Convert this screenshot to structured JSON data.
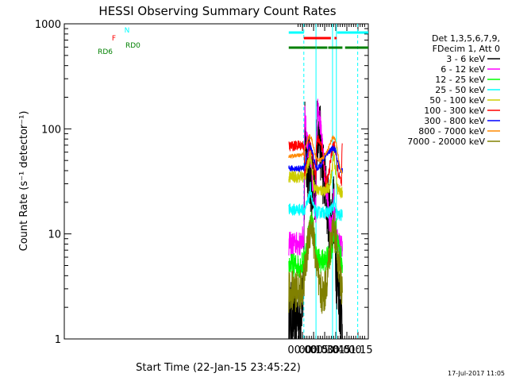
{
  "chart_data": {
    "type": "line",
    "title": "HESSI Observing Summary Count Rates",
    "xlabel": "Start Time (22-Jan-15 23:45:22)",
    "ylabel": "Count Rate (s⁻¹ detector⁻¹)",
    "y_scale": "log",
    "ylim": [
      1,
      1000
    ],
    "xlim": [
      -5.37,
      1.4833
    ],
    "x_unit": "hours from 00:00 (23-Jan-15)",
    "x_ticks": [
      {
        "value": 0.0,
        "label": "00:00"
      },
      {
        "value": 0.25,
        "label": "00:15"
      },
      {
        "value": 0.5,
        "label": "00:30"
      },
      {
        "value": 0.75,
        "label": "00:45"
      },
      {
        "value": 1.0,
        "label": "01:00"
      },
      {
        "value": 1.25,
        "label": "01:15"
      }
    ],
    "y_ticks": [
      {
        "value": 1,
        "label": "1"
      },
      {
        "value": 10,
        "label": "10"
      },
      {
        "value": 100,
        "label": "100"
      },
      {
        "value": 1000,
        "label": "1000"
      }
    ],
    "legend": {
      "header": [
        "Det 1,3,5,6,7,9,",
        "FDecim 1, Att 0"
      ],
      "placement": "right"
    },
    "series": [
      {
        "name": "3 - 6 keV",
        "color": "#000000",
        "points": [
          [
            -0.31,
            1.6
          ],
          [
            -0.04,
            1.6
          ],
          [
            -0.02,
            2.6
          ],
          [
            0.03,
            2.8
          ],
          [
            0.05,
            120
          ],
          [
            0.08,
            70
          ],
          [
            0.12,
            45
          ],
          [
            0.18,
            35
          ],
          [
            0.22,
            28
          ],
          [
            0.26,
            22
          ],
          [
            0.3,
            20
          ],
          [
            0.31,
            75
          ],
          [
            0.34,
            100
          ],
          [
            0.36,
            110
          ],
          [
            0.4,
            75
          ],
          [
            0.45,
            45
          ],
          [
            0.52,
            25
          ],
          [
            0.58,
            17
          ],
          [
            0.62,
            15
          ],
          [
            0.66,
            14
          ],
          [
            0.68,
            13
          ],
          [
            0.7,
            22
          ],
          [
            0.72,
            10
          ],
          [
            0.76,
            5
          ],
          [
            0.8,
            3
          ],
          [
            0.86,
            2
          ],
          [
            0.9,
            1.5
          ]
        ]
      },
      {
        "name": "6 - 12 keV",
        "color": "#ff00ff",
        "points": [
          [
            -0.31,
            8
          ],
          [
            -0.04,
            8
          ],
          [
            -0.02,
            9
          ],
          [
            0.03,
            9
          ],
          [
            0.05,
            150
          ],
          [
            0.08,
            100
          ],
          [
            0.12,
            70
          ],
          [
            0.18,
            50
          ],
          [
            0.22,
            33
          ],
          [
            0.26,
            22
          ],
          [
            0.3,
            16
          ],
          [
            0.31,
            70
          ],
          [
            0.33,
            130
          ],
          [
            0.35,
            180
          ],
          [
            0.4,
            110
          ],
          [
            0.45,
            65
          ],
          [
            0.52,
            30
          ],
          [
            0.58,
            18
          ],
          [
            0.62,
            12
          ],
          [
            0.66,
            11
          ],
          [
            0.68,
            13
          ],
          [
            0.7,
            22
          ],
          [
            0.72,
            15
          ],
          [
            0.76,
            10
          ],
          [
            0.8,
            8
          ],
          [
            0.86,
            7.5
          ],
          [
            0.9,
            7.5
          ]
        ]
      },
      {
        "name": "12 - 25 keV",
        "color": "#00ff00",
        "points": [
          [
            -0.31,
            5
          ],
          [
            -0.04,
            5
          ],
          [
            0.03,
            5.5
          ],
          [
            0.08,
            7
          ],
          [
            0.12,
            9
          ],
          [
            0.16,
            12
          ],
          [
            0.2,
            13
          ],
          [
            0.24,
            11
          ],
          [
            0.28,
            8
          ],
          [
            0.32,
            6
          ],
          [
            0.4,
            5.5
          ],
          [
            0.5,
            5.5
          ],
          [
            0.6,
            6
          ],
          [
            0.68,
            8
          ],
          [
            0.72,
            10
          ],
          [
            0.76,
            11
          ],
          [
            0.8,
            8
          ],
          [
            0.86,
            6
          ],
          [
            0.9,
            5.5
          ]
        ]
      },
      {
        "name": "25 - 50 keV",
        "color": "#00ffff",
        "points": [
          [
            -0.31,
            17
          ],
          [
            -0.04,
            17
          ],
          [
            0.03,
            17
          ],
          [
            0.08,
            18
          ],
          [
            0.12,
            20
          ],
          [
            0.16,
            23
          ],
          [
            0.18,
            28
          ],
          [
            0.22,
            20
          ],
          [
            0.26,
            17
          ],
          [
            0.32,
            16
          ],
          [
            0.4,
            16
          ],
          [
            0.5,
            16
          ],
          [
            0.6,
            16
          ],
          [
            0.68,
            18
          ],
          [
            0.72,
            20
          ],
          [
            0.76,
            16
          ],
          [
            0.8,
            15
          ],
          [
            0.86,
            15
          ],
          [
            0.9,
            15
          ]
        ]
      },
      {
        "name": "50 - 100 keV",
        "color": "#cccc00",
        "points": [
          [
            -0.31,
            35
          ],
          [
            -0.04,
            35
          ],
          [
            0.03,
            35
          ],
          [
            0.08,
            38
          ],
          [
            0.12,
            45
          ],
          [
            0.16,
            55
          ],
          [
            0.18,
            58
          ],
          [
            0.22,
            40
          ],
          [
            0.26,
            28
          ],
          [
            0.32,
            26
          ],
          [
            0.4,
            26
          ],
          [
            0.5,
            26
          ],
          [
            0.6,
            28
          ],
          [
            0.66,
            38
          ],
          [
            0.7,
            55
          ],
          [
            0.72,
            50
          ],
          [
            0.76,
            35
          ],
          [
            0.8,
            26
          ],
          [
            0.86,
            25
          ],
          [
            0.9,
            25
          ]
        ]
      },
      {
        "name": "100 - 300 keV",
        "color": "#ff0000",
        "points": [
          [
            -0.31,
            68
          ],
          [
            -0.04,
            70
          ],
          [
            0.03,
            70
          ],
          [
            0.05,
            35
          ],
          [
            0.08,
            45
          ],
          [
            0.12,
            60
          ],
          [
            0.16,
            70
          ],
          [
            0.2,
            65
          ],
          [
            0.24,
            50
          ],
          [
            0.28,
            38
          ],
          [
            0.3,
            36
          ],
          [
            0.31,
            70
          ],
          [
            0.35,
            80
          ],
          [
            0.4,
            75
          ],
          [
            0.45,
            65
          ],
          [
            0.52,
            30
          ],
          [
            0.58,
            35
          ],
          [
            0.62,
            45
          ],
          [
            0.66,
            60
          ],
          [
            0.7,
            72
          ],
          [
            0.74,
            65
          ],
          [
            0.78,
            45
          ],
          [
            0.82,
            35
          ],
          [
            0.86,
            32
          ],
          [
            0.88,
            30
          ],
          [
            0.89,
            65
          ],
          [
            0.9,
            65
          ]
        ]
      },
      {
        "name": "300 - 800 keV",
        "color": "#0000ff",
        "points": [
          [
            -0.31,
            42
          ],
          [
            -0.04,
            42
          ],
          [
            0.03,
            42
          ],
          [
            0.08,
            50
          ],
          [
            0.12,
            62
          ],
          [
            0.16,
            70
          ],
          [
            0.2,
            66
          ],
          [
            0.24,
            56
          ],
          [
            0.28,
            46
          ],
          [
            0.32,
            42
          ],
          [
            0.4,
            44
          ],
          [
            0.46,
            50
          ],
          [
            0.52,
            56
          ],
          [
            0.58,
            60
          ],
          [
            0.62,
            62
          ],
          [
            0.66,
            64
          ],
          [
            0.7,
            66
          ],
          [
            0.74,
            62
          ],
          [
            0.78,
            52
          ],
          [
            0.82,
            44
          ],
          [
            0.86,
            40
          ],
          [
            0.9,
            40
          ]
        ]
      },
      {
        "name": "800 - 7000 keV",
        "color": "#ff8800",
        "points": [
          [
            -0.31,
            55
          ],
          [
            -0.04,
            56
          ],
          [
            0.03,
            58
          ],
          [
            0.08,
            70
          ],
          [
            0.12,
            80
          ],
          [
            0.16,
            86
          ],
          [
            0.2,
            82
          ],
          [
            0.24,
            70
          ],
          [
            0.28,
            58
          ],
          [
            0.32,
            52
          ],
          [
            0.38,
            50
          ],
          [
            0.44,
            52
          ],
          [
            0.5,
            55
          ],
          [
            0.56,
            62
          ],
          [
            0.62,
            72
          ],
          [
            0.66,
            80
          ],
          [
            0.7,
            84
          ],
          [
            0.74,
            78
          ],
          [
            0.78,
            65
          ],
          [
            0.82,
            50
          ],
          [
            0.86,
            40
          ],
          [
            0.9,
            38
          ]
        ]
      },
      {
        "name": "7000 - 20000 keV",
        "color": "#808000",
        "points": [
          [
            -0.31,
            2.8
          ],
          [
            -0.04,
            2.9
          ],
          [
            0.03,
            3.5
          ],
          [
            0.08,
            5
          ],
          [
            0.12,
            8
          ],
          [
            0.16,
            11
          ],
          [
            0.2,
            12
          ],
          [
            0.24,
            10
          ],
          [
            0.28,
            7
          ],
          [
            0.32,
            4.5
          ],
          [
            0.38,
            3
          ],
          [
            0.44,
            2.6
          ],
          [
            0.5,
            2.8
          ],
          [
            0.56,
            4
          ],
          [
            0.62,
            7
          ],
          [
            0.66,
            10
          ],
          [
            0.7,
            12
          ],
          [
            0.74,
            10
          ],
          [
            0.78,
            7
          ],
          [
            0.82,
            5
          ],
          [
            0.86,
            3.5
          ],
          [
            0.9,
            2.6
          ]
        ]
      }
    ],
    "vertical_markers": [
      {
        "x": 0.03,
        "color": "#00ffff",
        "style": "dashed"
      },
      {
        "x": 0.304,
        "color": "#00ffff",
        "style": "solid"
      },
      {
        "x": 0.677,
        "color": "#00ffff",
        "style": "solid"
      },
      {
        "x": 0.764,
        "color": "#00ffff",
        "style": "solid"
      },
      {
        "x": 1.244,
        "color": "#00ffff",
        "style": "dashed"
      }
    ],
    "status_bars": [
      {
        "label": "N",
        "color": "#00ffff",
        "segments": [
          [
            -0.31,
            0.03
          ],
          [
            0.78,
            1.4833
          ]
        ]
      },
      {
        "label": "F",
        "color": "#ff0000",
        "segments": [
          [
            0.03,
            0.64
          ],
          [
            0.72,
            0.77
          ]
        ]
      },
      {
        "label": "RD0",
        "color": "#008000",
        "segments": []
      },
      {
        "label": "RD6",
        "color": "#008000",
        "segments": [
          [
            -0.31,
            0.03
          ],
          [
            0.03,
            0.3
          ],
          [
            0.31,
            0.56
          ],
          [
            0.58,
            0.9
          ],
          [
            0.96,
            1.4833
          ]
        ]
      }
    ]
  },
  "footer": {
    "timestamp": "17-Jul-2017 11:05"
  }
}
